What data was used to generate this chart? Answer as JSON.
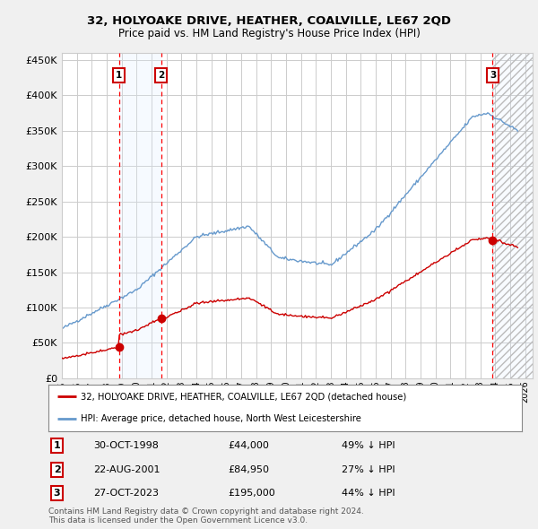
{
  "title": "32, HOLYOAKE DRIVE, HEATHER, COALVILLE, LE67 2QD",
  "subtitle": "Price paid vs. HM Land Registry's House Price Index (HPI)",
  "legend_line1": "32, HOLYOAKE DRIVE, HEATHER, COALVILLE, LE67 2QD (detached house)",
  "legend_line2": "HPI: Average price, detached house, North West Leicestershire",
  "footnote1": "Contains HM Land Registry data © Crown copyright and database right 2024.",
  "footnote2": "This data is licensed under the Open Government Licence v3.0.",
  "sale_labels": [
    {
      "num": 1,
      "date": "30-OCT-1998",
      "price": "£44,000",
      "pct": "49% ↓ HPI",
      "year": 1998.83
    },
    {
      "num": 2,
      "date": "22-AUG-2001",
      "price": "£84,950",
      "pct": "27% ↓ HPI",
      "year": 2001.64
    },
    {
      "num": 3,
      "date": "27-OCT-2023",
      "price": "£195,000",
      "pct": "44% ↓ HPI",
      "year": 2023.83
    }
  ],
  "sale_prices": [
    44000,
    84950,
    195000
  ],
  "red_line_color": "#cc0000",
  "blue_line_color": "#6699cc",
  "grid_color": "#cccccc",
  "background_color": "#f0f0f0",
  "plot_bg_color": "#ffffff",
  "shade_color": "#ddeeff",
  "ylim": [
    0,
    460000
  ],
  "xlim_start": 1995.0,
  "xlim_end": 2026.5
}
